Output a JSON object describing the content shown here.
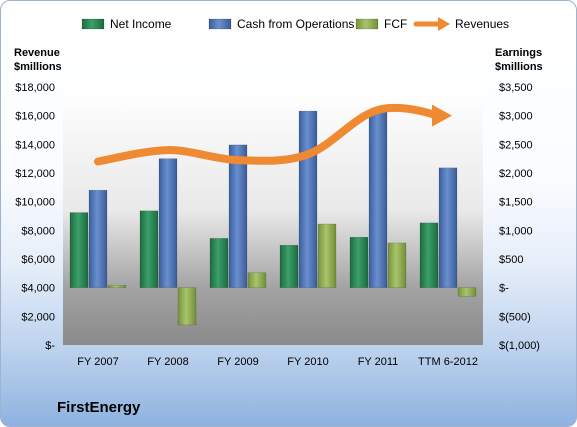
{
  "company": "FirstEnergy",
  "colors": {
    "net_income": "#2e8b57",
    "cash_from_operations": "#4f73b3",
    "fcf": "#93ad58",
    "revenues": "#ef8a32"
  },
  "chart_data": {
    "type": "bar",
    "categories": [
      "FY 2007",
      "FY 2008",
      "FY 2009",
      "FY 2010",
      "FY 2011",
      "TTM 6-2012"
    ],
    "left_axis": {
      "title_line1": "Revenue",
      "title_line2": "$millions",
      "ylim": [
        0,
        18000
      ],
      "ticks": [
        0,
        2000,
        4000,
        6000,
        8000,
        10000,
        12000,
        14000,
        16000,
        18000
      ],
      "tick_labels": [
        "$-",
        "$2,000",
        "$4,000",
        "$6,000",
        "$8,000",
        "$10,000",
        "$12,000",
        "$14,000",
        "$16,000",
        "$18,000"
      ]
    },
    "right_axis": {
      "title_line1": "Earnings",
      "title_line2": "$millions",
      "ylim": [
        -1000,
        3500
      ],
      "ticks": [
        -1000,
        -500,
        0,
        500,
        1000,
        1500,
        2000,
        2500,
        3000,
        3500
      ],
      "tick_labels": [
        "$(1,000)",
        "$(500)",
        "$-",
        "$500",
        "$1,000",
        "$1,500",
        "$2,000",
        "$2,500",
        "$3,000",
        "$3,500"
      ]
    },
    "series": [
      {
        "name": "Net Income",
        "axis": "right",
        "kind": "bar",
        "values": [
          1310,
          1340,
          860,
          740,
          880,
          1130
        ]
      },
      {
        "name": "Cash from Operations",
        "axis": "right",
        "kind": "bar",
        "values": [
          1700,
          2250,
          2490,
          3080,
          3070,
          2090
        ]
      },
      {
        "name": "FCF",
        "axis": "right",
        "kind": "bar",
        "values": [
          40,
          -650,
          260,
          1110,
          780,
          -150
        ]
      },
      {
        "name": "Revenues",
        "axis": "left",
        "kind": "line",
        "values": [
          12800,
          13600,
          12900,
          13300,
          16400,
          16000
        ]
      }
    ],
    "legend_position": "top",
    "grid": false
  }
}
